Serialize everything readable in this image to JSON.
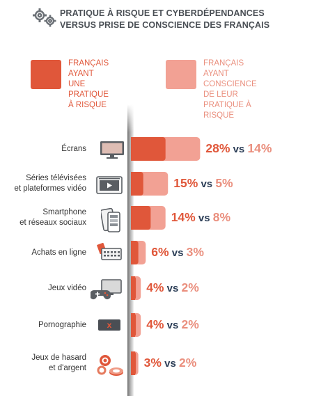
{
  "title": {
    "line1": "PRATIQUE À RISQUE ET CYBERDÉPENDANCES",
    "line2": "VERSUS PRISE DE CONSCIENCE DES FRANÇAIS"
  },
  "colors": {
    "risk": "#e0573a",
    "aware": "#f2a194",
    "vs": "#2c3e57"
  },
  "legend": {
    "risk_label": "FRANÇAIS AYANT\nUNE PRATIQUE\nÀ RISQUE",
    "aware_label": "FRANÇAIS AYANT\nCONSCIENCE DE LEUR\nPRATIQUE À RISQUE"
  },
  "vs_word": "vs",
  "icons": [
    "monitor-icon",
    "tv-play-icon",
    "smartphone-icon",
    "shopping-card-icon",
    "gamepad-monitor-icon",
    "adult-content-icon",
    "casino-chips-icon"
  ],
  "chart_data": {
    "type": "bar",
    "orientation": "horizontal",
    "categories": [
      "Écrans",
      "Séries télévisées\net plateformes vidéo",
      "Smartphone\net réseaux sociaux",
      "Achats en ligne",
      "Jeux vidéo",
      "Pornographie",
      "Jeux de hasard\net d'argent"
    ],
    "series": [
      {
        "name": "FRANÇAIS AYANT UNE PRATIQUE À RISQUE",
        "values": [
          28,
          15,
          14,
          6,
          4,
          4,
          3
        ]
      },
      {
        "name": "FRANÇAIS AYANT CONSCIENCE DE LEUR PRATIQUE À RISQUE",
        "values": [
          14,
          5,
          8,
          3,
          2,
          2,
          2
        ]
      }
    ],
    "labels": [
      {
        "risk": "28%",
        "aware": "14%"
      },
      {
        "risk": "15%",
        "aware": "5%"
      },
      {
        "risk": "14%",
        "aware": "8%"
      },
      {
        "risk": "6%",
        "aware": "3%"
      },
      {
        "risk": "4%",
        "aware": "2%"
      },
      {
        "risk": "4%",
        "aware": "2%"
      },
      {
        "risk": "3%",
        "aware": "2%"
      }
    ],
    "layering": "overlay",
    "xlim": [
      0,
      28
    ]
  }
}
